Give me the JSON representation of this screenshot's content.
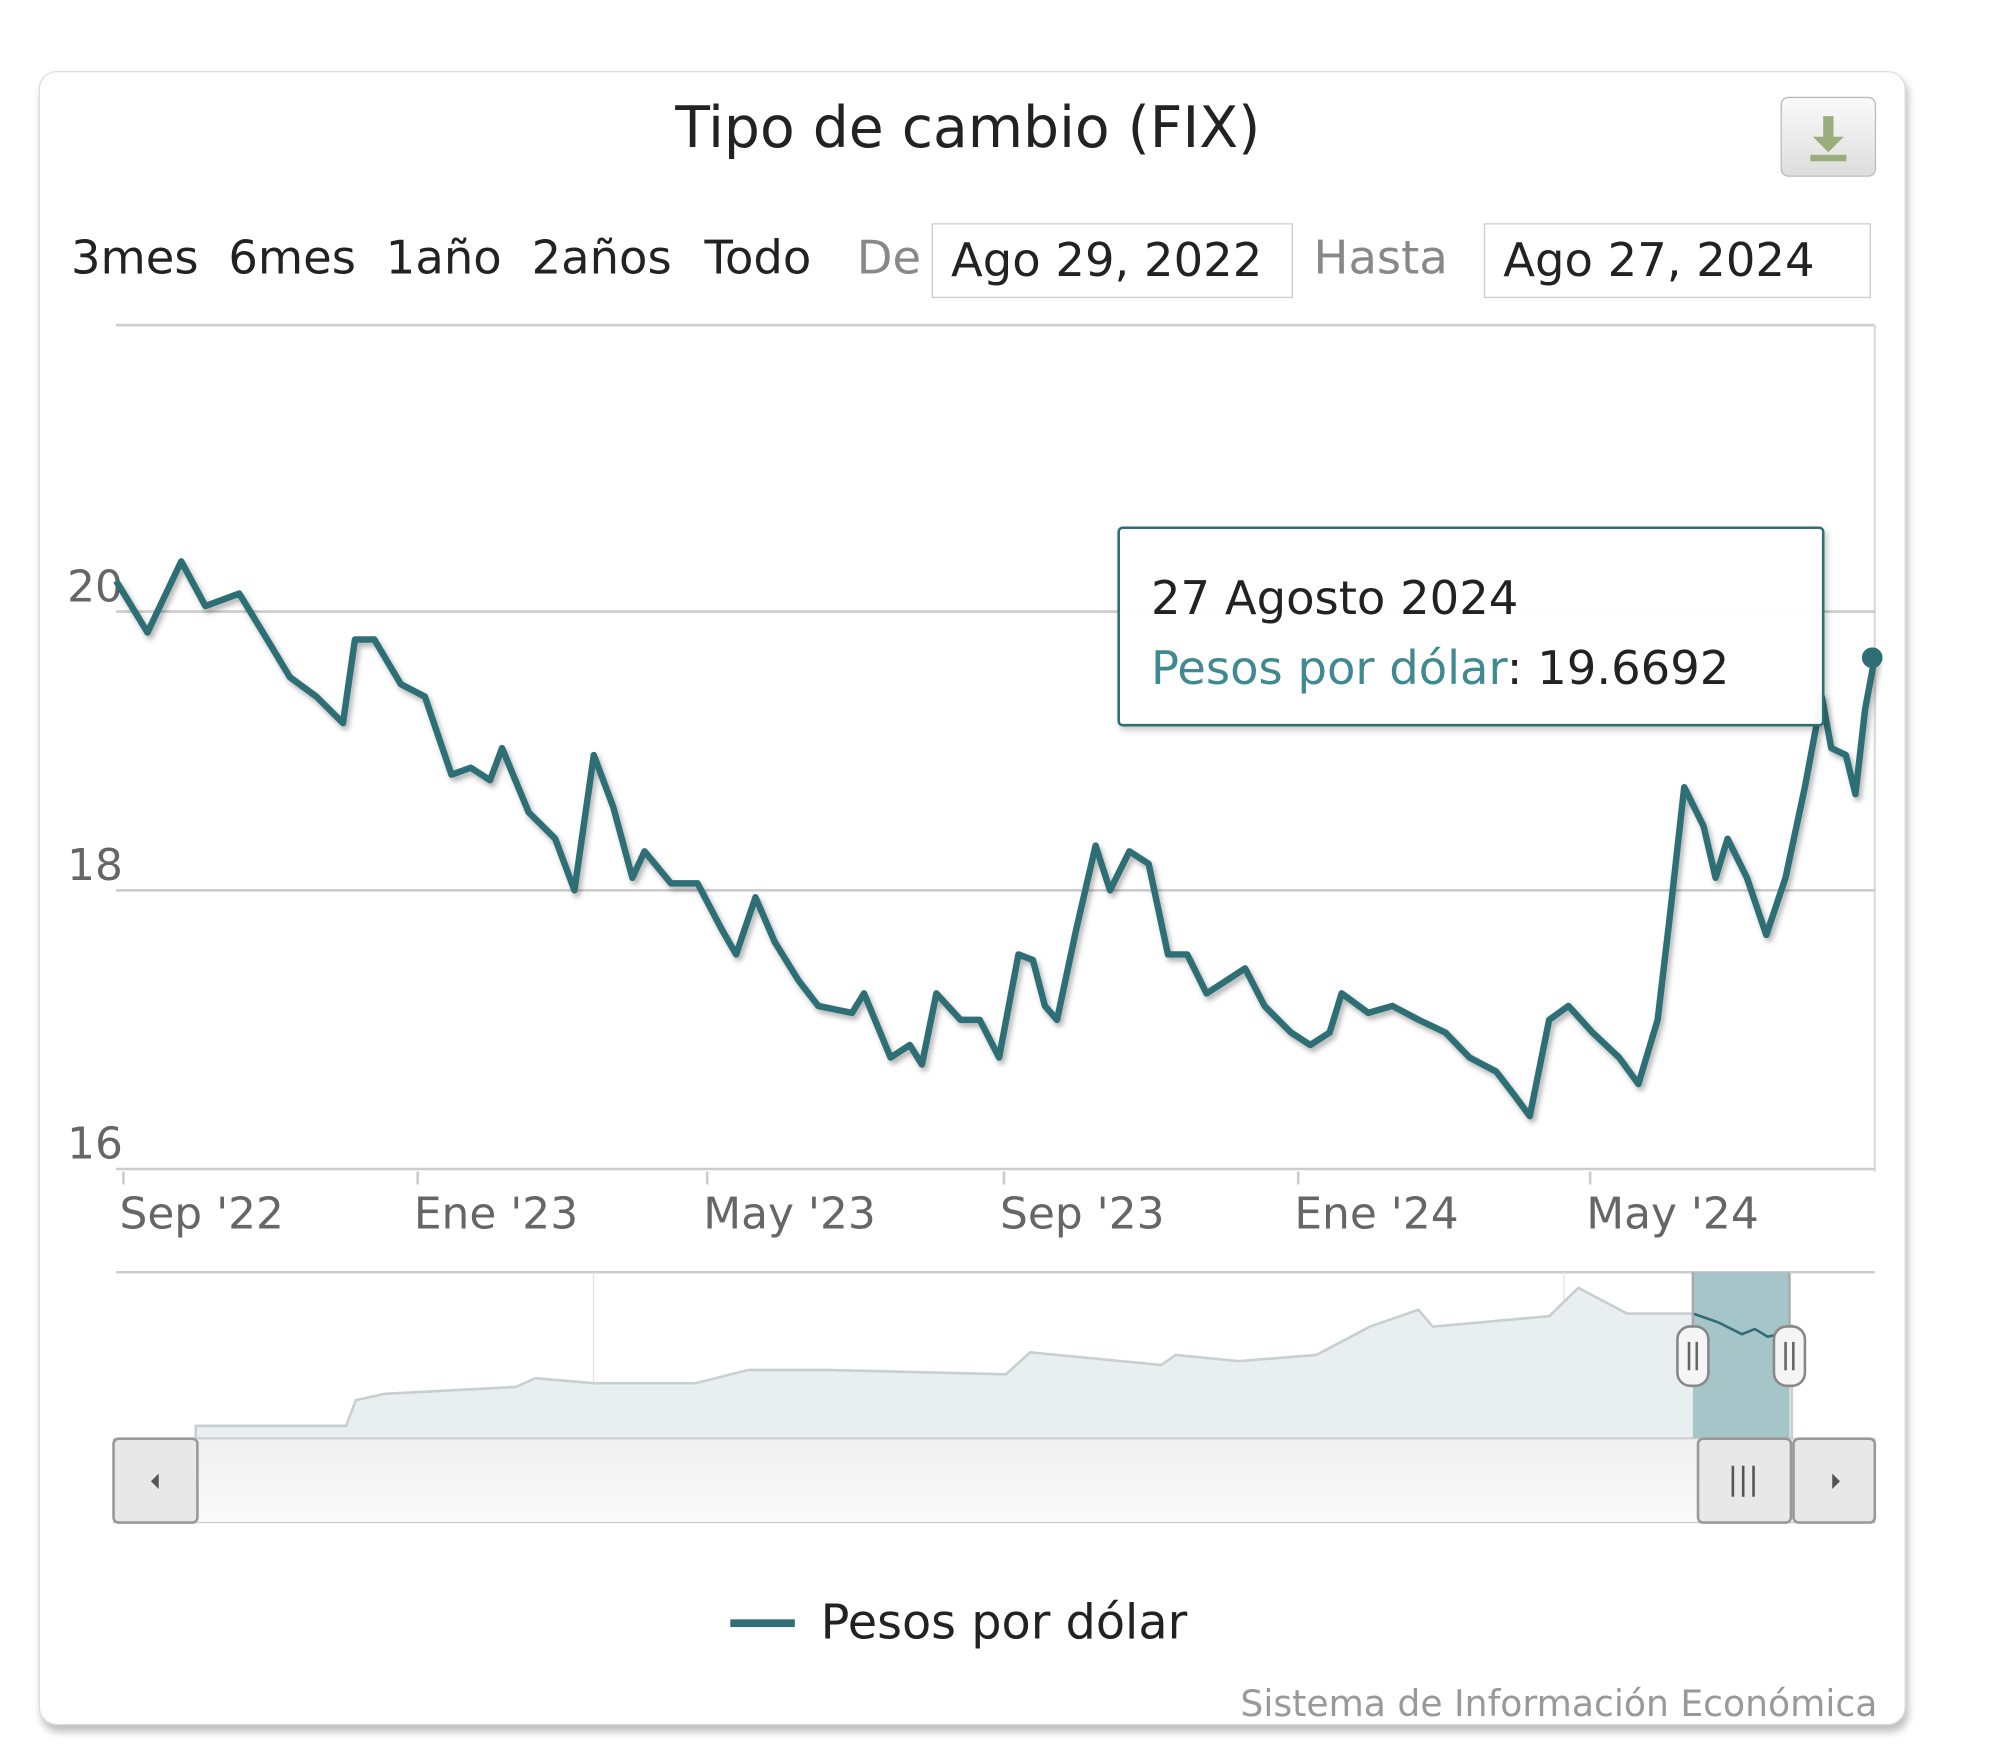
{
  "title": "Tipo de cambio (FIX)",
  "download_icon": "download-icon",
  "range_selector": {
    "buttons": [
      "3mes",
      "6mes",
      "1año",
      "2años",
      "Todo"
    ],
    "from_label": "De",
    "from_value": "Ago 29, 2022",
    "to_label": "Hasta",
    "to_value": "Ago 27, 2024"
  },
  "tooltip": {
    "date": "27 Agosto 2024",
    "series": "Pesos por dólar",
    "value": "19.6692"
  },
  "legend": {
    "label": "Pesos por dólar"
  },
  "credits": "Sistema de Información Económica",
  "colors": {
    "series": "#2e6e74",
    "navigator_fill": "#e9eff0",
    "navigator_selection": "#a5c5c9"
  },
  "chart_data": {
    "type": "line",
    "title": "Tipo de cambio (FIX)",
    "xlabel": "",
    "ylabel": "",
    "ylim": [
      16,
      22
    ],
    "xlim": [
      "2022-08-29",
      "2024-08-27"
    ],
    "y_ticks": [
      "16",
      "18",
      "20"
    ],
    "x_ticks": [
      {
        "label": "Sep '22",
        "date": "2022-09-01"
      },
      {
        "label": "Ene '23",
        "date": "2023-01-01"
      },
      {
        "label": "May '23",
        "date": "2023-05-01"
      },
      {
        "label": "Sep '23",
        "date": "2023-09-01"
      },
      {
        "label": "Ene '24",
        "date": "2024-01-01"
      },
      {
        "label": "May '24",
        "date": "2024-05-01"
      }
    ],
    "grid": true,
    "legend": "bottom-center",
    "series": [
      {
        "name": "Pesos por dólar",
        "points": [
          [
            "2022-08-29",
            20.22
          ],
          [
            "2022-09-03",
            20.08
          ],
          [
            "2022-09-11",
            19.85
          ],
          [
            "2022-09-25",
            20.36
          ],
          [
            "2022-10-05",
            20.04
          ],
          [
            "2022-10-19",
            20.13
          ],
          [
            "2022-11-01",
            19.76
          ],
          [
            "2022-11-09",
            19.53
          ],
          [
            "2022-11-20",
            19.39
          ],
          [
            "2022-12-01",
            19.2
          ],
          [
            "2022-12-06",
            19.8
          ],
          [
            "2022-12-14",
            19.8
          ],
          [
            "2022-12-25",
            19.48
          ],
          [
            "2023-01-04",
            19.39
          ],
          [
            "2023-01-15",
            18.83
          ],
          [
            "2023-01-23",
            18.88
          ],
          [
            "2023-01-31",
            18.79
          ],
          [
            "2023-02-05",
            19.02
          ],
          [
            "2023-02-16",
            18.56
          ],
          [
            "2023-02-27",
            18.37
          ],
          [
            "2023-03-07",
            18.0
          ],
          [
            "2023-03-15",
            18.97
          ],
          [
            "2023-03-23",
            18.6
          ],
          [
            "2023-03-31",
            18.09
          ],
          [
            "2023-04-05",
            18.28
          ],
          [
            "2023-04-16",
            18.05
          ],
          [
            "2023-04-27",
            18.05
          ],
          [
            "2023-05-07",
            17.72
          ],
          [
            "2023-05-13",
            17.54
          ],
          [
            "2023-05-21",
            17.95
          ],
          [
            "2023-05-29",
            17.63
          ],
          [
            "2023-06-08",
            17.35
          ],
          [
            "2023-06-16",
            17.17
          ],
          [
            "2023-06-30",
            17.12
          ],
          [
            "2023-07-05",
            17.26
          ],
          [
            "2023-07-16",
            16.8
          ],
          [
            "2023-07-24",
            16.89
          ],
          [
            "2023-07-29",
            16.75
          ],
          [
            "2023-08-04",
            17.26
          ],
          [
            "2023-08-14",
            17.07
          ],
          [
            "2023-08-22",
            17.07
          ],
          [
            "2023-08-30",
            16.8
          ],
          [
            "2023-09-07",
            17.54
          ],
          [
            "2023-09-13",
            17.5
          ],
          [
            "2023-09-18",
            17.17
          ],
          [
            "2023-09-23",
            17.07
          ],
          [
            "2023-10-01",
            17.72
          ],
          [
            "2023-10-09",
            18.32
          ],
          [
            "2023-10-15",
            18.0
          ],
          [
            "2023-10-23",
            18.28
          ],
          [
            "2023-10-31",
            18.19
          ],
          [
            "2023-11-08",
            17.54
          ],
          [
            "2023-11-16",
            17.54
          ],
          [
            "2023-11-24",
            17.26
          ],
          [
            "2023-12-02",
            17.35
          ],
          [
            "2023-12-10",
            17.44
          ],
          [
            "2023-12-18",
            17.17
          ],
          [
            "2023-12-29",
            16.98
          ],
          [
            "2024-01-06",
            16.89
          ],
          [
            "2024-01-14",
            16.98
          ],
          [
            "2024-01-19",
            17.26
          ],
          [
            "2024-01-30",
            17.12
          ],
          [
            "2024-02-09",
            17.17
          ],
          [
            "2024-02-20",
            17.07
          ],
          [
            "2024-03-02",
            16.98
          ],
          [
            "2024-03-12",
            16.8
          ],
          [
            "2024-03-23",
            16.7
          ],
          [
            "2024-03-31",
            16.52
          ],
          [
            "2024-04-06",
            16.38
          ],
          [
            "2024-04-14",
            17.07
          ],
          [
            "2024-04-22",
            17.17
          ],
          [
            "2024-05-02",
            16.98
          ],
          [
            "2024-05-13",
            16.8
          ],
          [
            "2024-05-21",
            16.61
          ],
          [
            "2024-05-29",
            17.07
          ],
          [
            "2024-06-03",
            17.81
          ],
          [
            "2024-06-09",
            18.74
          ],
          [
            "2024-06-17",
            18.46
          ],
          [
            "2024-06-22",
            18.09
          ],
          [
            "2024-06-27",
            18.37
          ],
          [
            "2024-07-05",
            18.09
          ],
          [
            "2024-07-13",
            17.68
          ],
          [
            "2024-07-21",
            18.09
          ],
          [
            "2024-07-29",
            18.74
          ],
          [
            "2024-08-05",
            19.39
          ],
          [
            "2024-08-09",
            19.02
          ],
          [
            "2024-08-15",
            18.97
          ],
          [
            "2024-08-19",
            18.69
          ],
          [
            "2024-08-23",
            19.3
          ],
          [
            "2024-08-27",
            19.6692
          ]
        ]
      }
    ],
    "navigator": {
      "x_ticks": [
        "2000",
        "2020"
      ],
      "points": [
        [
          1991.8,
          3
        ],
        [
          1994.9,
          3
        ],
        [
          1995.1,
          7.1
        ],
        [
          1995.7,
          8.1
        ],
        [
          1998.4,
          9.2
        ],
        [
          1998.8,
          10.6
        ],
        [
          2000,
          9.8
        ],
        [
          2002.1,
          9.8
        ],
        [
          2003.2,
          11.9
        ],
        [
          2004.8,
          11.9
        ],
        [
          2008.5,
          11.2
        ],
        [
          2009.0,
          14.7
        ],
        [
          2011.7,
          12.7
        ],
        [
          2012.0,
          14.3
        ],
        [
          2013.3,
          13.3
        ],
        [
          2014.9,
          14.3
        ],
        [
          2016.0,
          18.8
        ],
        [
          2017.0,
          21.5
        ],
        [
          2017.3,
          18.8
        ],
        [
          2019.7,
          20.5
        ],
        [
          2020.3,
          25.0
        ],
        [
          2021.3,
          20.9
        ],
        [
          2022.6,
          20.9
        ],
        [
          2023.7,
          18.0
        ],
        [
          2024.7,
          19.0
        ]
      ],
      "selection": [
        2022.66,
        2024.65
      ]
    }
  }
}
